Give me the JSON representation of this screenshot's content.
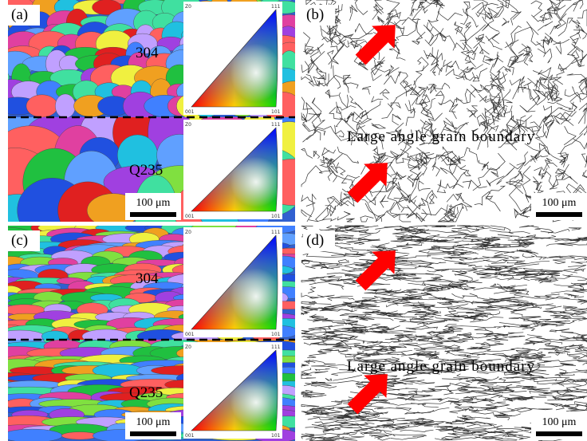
{
  "panels": [
    {
      "label": "(a)",
      "top_label": "304",
      "bottom_label": "Q235",
      "scale_bar": "100 μm",
      "triangles": [
        {
          "corner": "Z0",
          "top": "111",
          "left": "001",
          "right": "101"
        },
        {
          "corner": "Z0",
          "top": "111",
          "left": "001",
          "right": "101"
        }
      ]
    },
    {
      "label": "(b)",
      "annotation": "Large angle grain boundary",
      "scale_bar": "100 μm"
    },
    {
      "label": "(c)",
      "top_label": "304",
      "bottom_label": "Q235",
      "scale_bar": "100 μm",
      "triangles": [
        {
          "corner": "Z0",
          "top": "111",
          "left": "001",
          "right": "101"
        },
        {
          "corner": "Z0",
          "top": "111",
          "left": "001",
          "right": "101"
        }
      ]
    },
    {
      "label": "(d)",
      "annotation": "Large angle grain boundary",
      "scale_bar": "100 μm"
    }
  ]
}
